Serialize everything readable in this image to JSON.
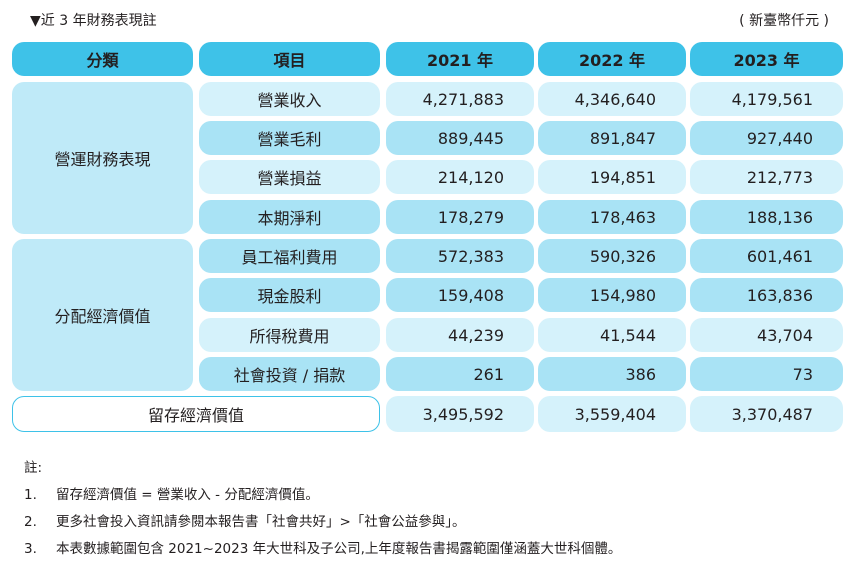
{
  "caption": "▼近 3 年財務表現註",
  "unit": "( 新臺幣仟元 )",
  "headers": {
    "category": "分類",
    "item": "項目",
    "y2021": "2021 年",
    "y2022": "2022 年",
    "y2023": "2023 年"
  },
  "groups": {
    "operating": "營運財務表現",
    "distributed": "分配經濟價值"
  },
  "rows": [
    {
      "item": "營業收入",
      "v2021": "4,271,883",
      "v2022": "4,346,640",
      "v2023": "4,179,561"
    },
    {
      "item": "營業毛利",
      "v2021": "889,445",
      "v2022": "891,847",
      "v2023": "927,440"
    },
    {
      "item": "營業損益",
      "v2021": "214,120",
      "v2022": "194,851",
      "v2023": "212,773"
    },
    {
      "item": "本期淨利",
      "v2021": "178,279",
      "v2022": "178,463",
      "v2023": "188,136"
    },
    {
      "item": "員工福利費用",
      "v2021": "572,383",
      "v2022": "590,326",
      "v2023": "601,461"
    },
    {
      "item": "現金股利",
      "v2021": "159,408",
      "v2022": "154,980",
      "v2023": "163,836"
    },
    {
      "item": "所得稅費用",
      "v2021": "44,239",
      "v2022": "41,544",
      "v2023": "43,704"
    },
    {
      "item": "社會投資 / 捐款",
      "v2021": "261",
      "v2022": "386",
      "v2023": "73"
    }
  ],
  "retained": {
    "label": "留存經濟價值",
    "v2021": "3,495,592",
    "v2022": "3,559,404",
    "v2023": "3,370,487"
  },
  "notes": {
    "title": "註:",
    "items": [
      {
        "n": "1.",
        "text": "留存經濟價值 = 營業收入 - 分配經濟價值。"
      },
      {
        "n": "2.",
        "text": "更多社會投入資訊請參閱本報告書「社會共好」>「社會公益參與」。"
      },
      {
        "n": "3.",
        "text": "本表數據範圍包含 2021~2023 年大世科及子公司,上年度報告書揭露範圍僅涵蓋大世科個體。"
      }
    ]
  }
}
